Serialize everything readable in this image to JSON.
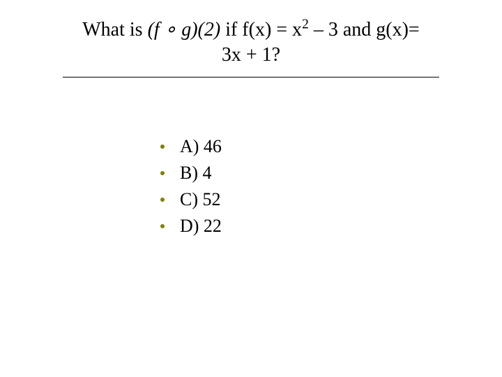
{
  "title": {
    "prefix": "What is ",
    "composition_open": "(",
    "composition_f": "f",
    "composition_symbol": " ∘ ",
    "composition_g": "g",
    "composition_close": ")(2) ",
    "middle": "if f(x) = x",
    "exponent": "2",
    "after_exp": " – 3 and g(x)=",
    "line2": "3x + 1?"
  },
  "options": [
    {
      "label": "A) 46"
    },
    {
      "label": "B) 4"
    },
    {
      "label": "C) 52"
    },
    {
      "label": "D) 22"
    }
  ],
  "style": {
    "bullet_color": "#808000",
    "text_color": "#000000",
    "background_color": "#ffffff",
    "hr_color": "#000000",
    "title_fontsize": 28,
    "option_fontsize": 26
  }
}
